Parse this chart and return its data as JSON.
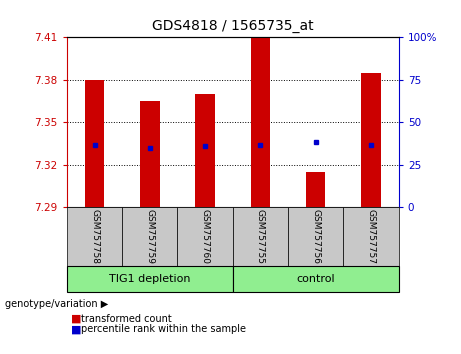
{
  "title": "GDS4818 / 1565735_at",
  "samples": [
    "GSM757758",
    "GSM757759",
    "GSM757760",
    "GSM757755",
    "GSM757756",
    "GSM757757"
  ],
  "group_labels": [
    "TIG1 depletion",
    "control"
  ],
  "red_values": [
    7.38,
    7.365,
    7.37,
    7.41,
    7.315,
    7.385
  ],
  "blue_values": [
    7.334,
    7.332,
    7.333,
    7.334,
    7.336,
    7.334
  ],
  "ymin": 7.29,
  "ymax": 7.41,
  "yticks": [
    7.29,
    7.32,
    7.35,
    7.38,
    7.41
  ],
  "right_yticks": [
    0,
    25,
    50,
    75,
    100
  ],
  "left_color": "#cc0000",
  "blue_color": "#0000cc",
  "right_color": "#0000cc",
  "legend_red_label": "transformed count",
  "legend_blue_label": "percentile rank within the sample",
  "genotype_label": "genotype/variation",
  "bar_width": 0.35,
  "group1_color": "#90ee90",
  "group2_color": "#90ee90",
  "sample_box_color": "#c8c8c8",
  "grid_color": "black",
  "title_fontsize": 10,
  "tick_fontsize": 7.5,
  "label_fontsize": 7.5
}
